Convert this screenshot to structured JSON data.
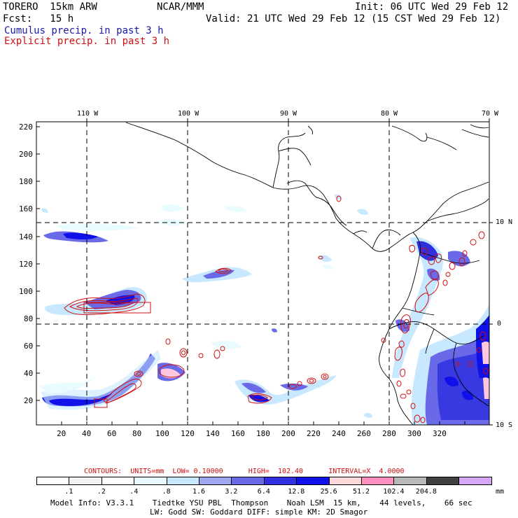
{
  "header": {
    "model": "TORERO  15km ARW",
    "org": "NCAR/MMM",
    "init": "Init: 06 UTC Wed 29 Feb 12",
    "fcst": "Fcst:   15 h",
    "valid": "Valid: 21 UTC Wed 29 Feb 12 (15 CST Wed 29 Feb 12)",
    "cumulus": "Cumulus precip. in past 3 h",
    "explicit": "Explicit precip. in past 3 h"
  },
  "map": {
    "lon_labels": [
      "110 W",
      "100 W",
      "90 W",
      "80 W",
      "70 W"
    ],
    "lat_labels": [
      "10 N",
      "0",
      "10 S"
    ],
    "x_ticks": [
      "20",
      "40",
      "60",
      "80",
      "100",
      "120",
      "140",
      "160",
      "180",
      "200",
      "220",
      "240",
      "260",
      "280",
      "300",
      "320"
    ],
    "y_ticks": [
      "220",
      "200",
      "180",
      "160",
      "140",
      "120",
      "100",
      "80",
      "60",
      "40",
      "20"
    ]
  },
  "contours": {
    "title": "CONTOURS:  UNITS=mm  LOW= 0.10000      HIGH=  102.40      INTERVAL=X  4.0000"
  },
  "legend": {
    "colors": [
      "#ffffff",
      "#f2f2f2",
      "#ffffff",
      "#e8fbff",
      "#c8e8ff",
      "#a0a8f0",
      "#6a6ae8",
      "#3030e0",
      "#1010e8",
      "#ffd8dc",
      "#ff90c0",
      "#b8b8b8",
      "#404040",
      "#d8a8f8"
    ],
    "labels": [
      ".1",
      ".2",
      ".4",
      ".8",
      "1.6",
      "3.2",
      "6.4",
      "12.8",
      "25.6",
      "51.2",
      "102.4",
      "204.8"
    ],
    "unit": "mm"
  },
  "footer": {
    "line1": "Model Info: V3.3.1    Tiedtke YSU PBL  Thompson    Noah LSM  15 km,    44 levels,    66 sec",
    "line2": "LW: Godd SW: Goddard DIFF: simple KM: 2D Smagor"
  }
}
